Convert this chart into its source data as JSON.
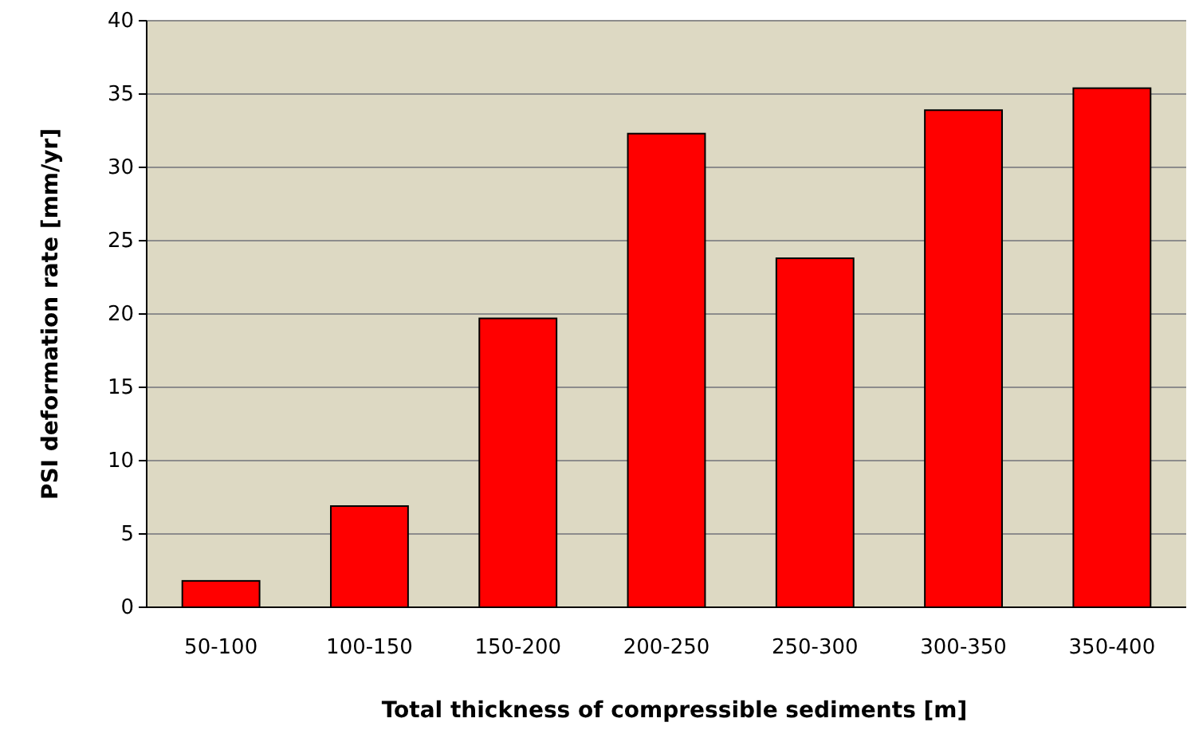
{
  "chart_data": {
    "type": "bar",
    "xlabel": "Total thickness of compressible sediments [m]",
    "ylabel": "PSI deformation rate [mm/yr]",
    "categories": [
      "50-100",
      "100-150",
      "150-200",
      "200-250",
      "250-300",
      "300-350",
      "350-400"
    ],
    "values": [
      1.8,
      6.9,
      19.7,
      32.3,
      23.8,
      33.9,
      35.4
    ],
    "color": "#ff0000",
    "ylim": [
      0,
      40
    ],
    "yticks": [
      0,
      5,
      10,
      15,
      20,
      25,
      30,
      35,
      40
    ],
    "grid": "y"
  }
}
